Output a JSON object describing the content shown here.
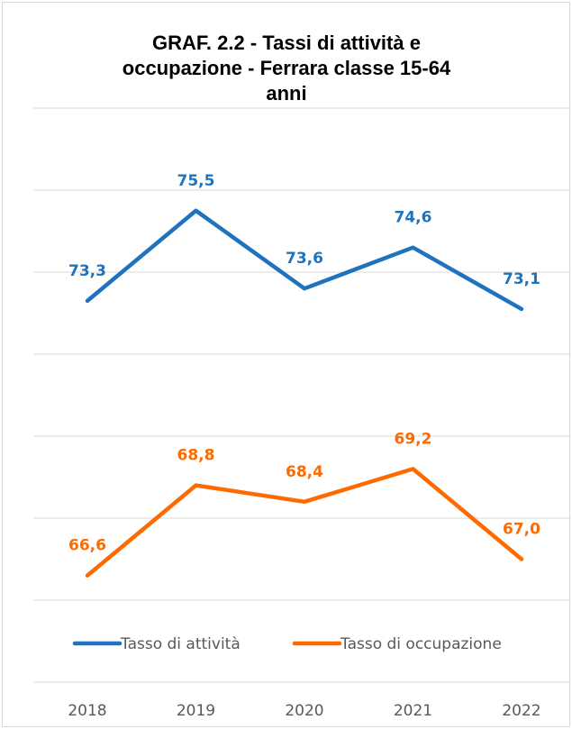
{
  "chart_data": {
    "type": "line",
    "title_lines": [
      "GRAF. 2.2 - Tassi di attività e",
      "occupazione - Ferrara classe 15-64",
      "anni"
    ],
    "categories": [
      "2018",
      "2019",
      "2020",
      "2021",
      "2022"
    ],
    "series": [
      {
        "name": "Tasso di attività",
        "color": "#1f73be",
        "values": [
          73.3,
          75.5,
          73.6,
          74.6,
          73.1
        ],
        "labels": [
          "73,3",
          "75,5",
          "73,6",
          "74,6",
          "73,1"
        ]
      },
      {
        "name": "Tasso di occupazione",
        "color": "#ff6a00",
        "values": [
          66.6,
          68.8,
          68.4,
          69.2,
          67.0
        ],
        "labels": [
          "66,6",
          "68,8",
          "68,4",
          "69,2",
          "67,0"
        ]
      }
    ],
    "ylim": [
      64,
      78
    ],
    "grid": true,
    "legend_position": "bottom",
    "xlabel": "",
    "ylabel": ""
  }
}
